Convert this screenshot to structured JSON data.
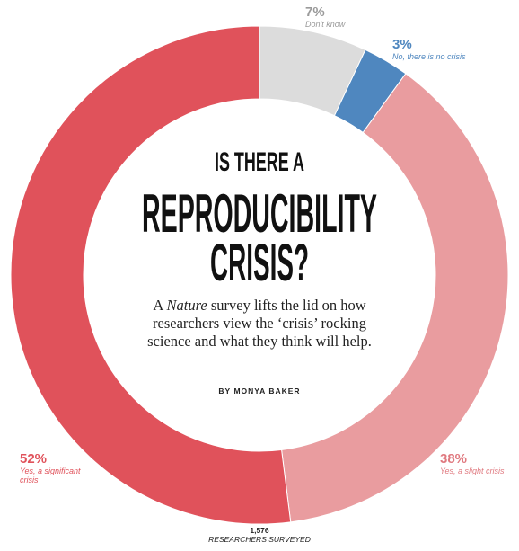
{
  "chart_data": {
    "type": "donut",
    "title_lines": [
      "IS THERE A",
      "REPRODUCIBILITY",
      "CRISIS?"
    ],
    "subtitle_start": "A",
    "subtitle_italic": "Nature",
    "subtitle_rest": "survey lifts the lid on how researchers view the ‘crisis’ rocking science and what they think will help.",
    "byline": "BY MONYA BAKER",
    "sample_size": "1,576",
    "sample_label": "RESEARCHERS SURVEYED",
    "categories": [
      "Don't know",
      "No, there is no crisis",
      "Yes, a slight crisis",
      "Yes, a significant crisis"
    ],
    "values": [
      7,
      3,
      38,
      52
    ],
    "value_labels": [
      "7%",
      "3%",
      "38%",
      "52%"
    ],
    "colors": [
      "#dcdcdc",
      "#4f87bf",
      "#e99c9f",
      "#e0525b"
    ],
    "label_colors": [
      "#9a9a9a",
      "#4f87bf",
      "#e07a80",
      "#e0525b"
    ]
  }
}
